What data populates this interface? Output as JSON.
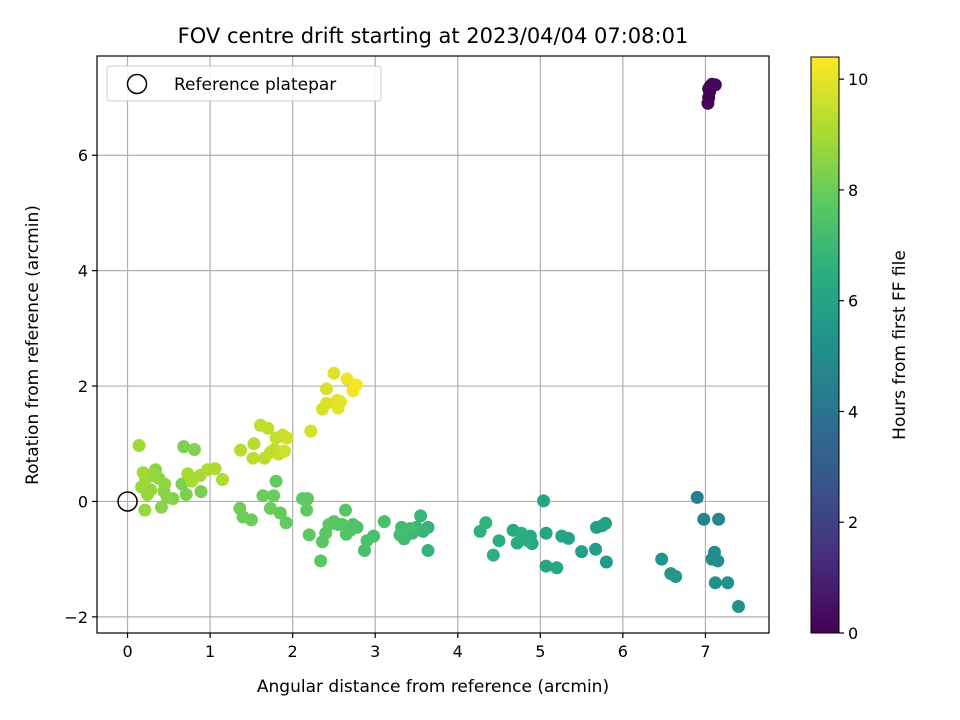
{
  "chart_data": {
    "type": "scatter",
    "title": "FOV centre drift starting at 2023/04/04 07:08:01",
    "xlabel": "Angular distance from reference (arcmin)",
    "ylabel": "Rotation from reference (arcmin)",
    "xlim": [
      -0.37,
      7.77
    ],
    "ylim": [
      -2.28,
      7.72
    ],
    "xticks": [
      0,
      1,
      2,
      3,
      4,
      5,
      6,
      7
    ],
    "yticks": [
      -2,
      0,
      2,
      4,
      6
    ],
    "grid": true,
    "legend": {
      "placement": "top-left",
      "entries": [
        "Reference platepar"
      ]
    },
    "reference_point": {
      "x": 0,
      "y": 0
    },
    "colorbar": {
      "label": "Hours from first FF file",
      "range": [
        0,
        10.4
      ],
      "ticks": [
        0,
        2,
        4,
        6,
        8,
        10
      ],
      "colormap": "viridis"
    },
    "points": [
      {
        "x": 7.03,
        "y": 6.9,
        "c": 0.1
      },
      {
        "x": 7.04,
        "y": 7.0,
        "c": 0.1
      },
      {
        "x": 7.05,
        "y": 7.1,
        "c": 0.1
      },
      {
        "x": 7.06,
        "y": 7.2,
        "c": 0.2
      },
      {
        "x": 7.08,
        "y": 7.23,
        "c": 0.2
      },
      {
        "x": 7.12,
        "y": 7.22,
        "c": 0.2
      },
      {
        "x": 7.04,
        "y": 7.15,
        "c": 0.1
      },
      {
        "x": 6.9,
        "y": 0.07,
        "c": 4.5
      },
      {
        "x": 6.98,
        "y": -0.31,
        "c": 4.7
      },
      {
        "x": 7.16,
        "y": -0.31,
        "c": 4.8
      },
      {
        "x": 7.11,
        "y": -0.88,
        "c": 5.0
      },
      {
        "x": 7.08,
        "y": -1.0,
        "c": 5.0
      },
      {
        "x": 7.15,
        "y": -1.03,
        "c": 5.1
      },
      {
        "x": 7.12,
        "y": -1.41,
        "c": 5.2
      },
      {
        "x": 7.27,
        "y": -1.41,
        "c": 5.2
      },
      {
        "x": 7.4,
        "y": -1.82,
        "c": 5.3
      },
      {
        "x": 6.47,
        "y": -1.0,
        "c": 5.4
      },
      {
        "x": 6.58,
        "y": -1.25,
        "c": 5.5
      },
      {
        "x": 6.64,
        "y": -1.3,
        "c": 5.5
      },
      {
        "x": 5.8,
        "y": -1.05,
        "c": 5.7
      },
      {
        "x": 5.67,
        "y": -0.83,
        "c": 5.8
      },
      {
        "x": 5.68,
        "y": -0.45,
        "c": 5.8
      },
      {
        "x": 5.75,
        "y": -0.42,
        "c": 5.8
      },
      {
        "x": 5.79,
        "y": -0.38,
        "c": 5.9
      },
      {
        "x": 5.5,
        "y": -0.87,
        "c": 5.9
      },
      {
        "x": 5.34,
        "y": -0.64,
        "c": 6.0
      },
      {
        "x": 5.26,
        "y": -0.6,
        "c": 6.0
      },
      {
        "x": 5.07,
        "y": -0.55,
        "c": 6.1
      },
      {
        "x": 5.04,
        "y": 0.01,
        "c": 6.1
      },
      {
        "x": 5.07,
        "y": -1.12,
        "c": 6.1
      },
      {
        "x": 5.2,
        "y": -1.15,
        "c": 6.2
      },
      {
        "x": 4.8,
        "y": -0.6,
        "c": 6.3
      },
      {
        "x": 4.88,
        "y": -0.6,
        "c": 6.3
      },
      {
        "x": 4.9,
        "y": -0.73,
        "c": 6.3
      },
      {
        "x": 4.72,
        "y": -0.72,
        "c": 6.4
      },
      {
        "x": 4.67,
        "y": -0.5,
        "c": 6.4
      },
      {
        "x": 4.85,
        "y": -0.68,
        "c": 6.5
      },
      {
        "x": 4.77,
        "y": -0.55,
        "c": 6.5
      },
      {
        "x": 4.5,
        "y": -0.68,
        "c": 6.6
      },
      {
        "x": 4.43,
        "y": -0.93,
        "c": 6.6
      },
      {
        "x": 4.34,
        "y": -0.37,
        "c": 6.7
      },
      {
        "x": 4.27,
        "y": -0.52,
        "c": 6.7
      },
      {
        "x": 3.64,
        "y": -0.85,
        "c": 6.8
      },
      {
        "x": 3.64,
        "y": -0.45,
        "c": 6.8
      },
      {
        "x": 3.55,
        "y": -0.25,
        "c": 6.9
      },
      {
        "x": 3.58,
        "y": -0.52,
        "c": 6.9
      },
      {
        "x": 3.5,
        "y": -0.45,
        "c": 7.0
      },
      {
        "x": 3.45,
        "y": -0.55,
        "c": 7.0
      },
      {
        "x": 3.4,
        "y": -0.5,
        "c": 7.0
      },
      {
        "x": 3.35,
        "y": -0.65,
        "c": 7.1
      },
      {
        "x": 3.32,
        "y": -0.45,
        "c": 7.1
      },
      {
        "x": 3.38,
        "y": -0.58,
        "c": 7.1
      },
      {
        "x": 3.3,
        "y": -0.58,
        "c": 7.2
      },
      {
        "x": 3.42,
        "y": -0.47,
        "c": 7.2
      },
      {
        "x": 3.11,
        "y": -0.35,
        "c": 7.3
      },
      {
        "x": 2.98,
        "y": -0.6,
        "c": 7.3
      },
      {
        "x": 2.87,
        "y": -0.85,
        "c": 7.3
      },
      {
        "x": 2.9,
        "y": -0.68,
        "c": 7.4
      },
      {
        "x": 2.78,
        "y": -0.45,
        "c": 7.4
      },
      {
        "x": 2.73,
        "y": -0.4,
        "c": 7.5
      },
      {
        "x": 2.7,
        "y": -0.5,
        "c": 7.5
      },
      {
        "x": 2.65,
        "y": -0.57,
        "c": 7.5
      },
      {
        "x": 2.64,
        "y": -0.15,
        "c": 7.6
      },
      {
        "x": 2.6,
        "y": -0.4,
        "c": 7.6
      },
      {
        "x": 2.55,
        "y": -0.4,
        "c": 7.6
      },
      {
        "x": 2.5,
        "y": -0.35,
        "c": 7.6
      },
      {
        "x": 2.44,
        "y": -0.4,
        "c": 7.7
      },
      {
        "x": 2.4,
        "y": -0.55,
        "c": 7.7
      },
      {
        "x": 2.36,
        "y": -0.7,
        "c": 7.7
      },
      {
        "x": 2.34,
        "y": -1.03,
        "c": 7.7
      },
      {
        "x": 2.2,
        "y": -0.58,
        "c": 7.8
      },
      {
        "x": 2.18,
        "y": 0.05,
        "c": 7.8
      },
      {
        "x": 2.12,
        "y": 0.05,
        "c": 7.8
      },
      {
        "x": 2.17,
        "y": -0.15,
        "c": 7.8
      },
      {
        "x": 1.92,
        "y": -0.37,
        "c": 7.9
      },
      {
        "x": 1.85,
        "y": -0.2,
        "c": 7.9
      },
      {
        "x": 1.8,
        "y": 0.35,
        "c": 7.9
      },
      {
        "x": 1.77,
        "y": 0.1,
        "c": 8.0
      },
      {
        "x": 1.73,
        "y": -0.12,
        "c": 8.0
      },
      {
        "x": 1.64,
        "y": 0.1,
        "c": 8.0
      },
      {
        "x": 1.5,
        "y": -0.32,
        "c": 8.0
      },
      {
        "x": 1.4,
        "y": -0.27,
        "c": 8.1
      },
      {
        "x": 1.36,
        "y": -0.12,
        "c": 8.1
      },
      {
        "x": 0.89,
        "y": 0.17,
        "c": 8.2
      },
      {
        "x": 0.71,
        "y": 0.12,
        "c": 8.3
      },
      {
        "x": 0.66,
        "y": 0.3,
        "c": 8.3
      },
      {
        "x": 0.68,
        "y": 0.95,
        "c": 8.3
      },
      {
        "x": 0.81,
        "y": 0.9,
        "c": 8.4
      },
      {
        "x": 0.55,
        "y": 0.05,
        "c": 8.4
      },
      {
        "x": 0.48,
        "y": 0.07,
        "c": 8.5
      },
      {
        "x": 0.41,
        "y": -0.1,
        "c": 8.5
      },
      {
        "x": 0.44,
        "y": 0.18,
        "c": 8.5
      },
      {
        "x": 0.45,
        "y": 0.3,
        "c": 8.6
      },
      {
        "x": 0.38,
        "y": 0.4,
        "c": 8.6
      },
      {
        "x": 0.34,
        "y": 0.55,
        "c": 8.6
      },
      {
        "x": 0.31,
        "y": 0.45,
        "c": 8.7
      },
      {
        "x": 0.28,
        "y": 0.2,
        "c": 8.7
      },
      {
        "x": 0.24,
        "y": 0.12,
        "c": 8.7
      },
      {
        "x": 0.22,
        "y": 0.38,
        "c": 8.8
      },
      {
        "x": 0.21,
        "y": -0.15,
        "c": 8.8
      },
      {
        "x": 0.17,
        "y": 0.25,
        "c": 8.8
      },
      {
        "x": 0.19,
        "y": 0.5,
        "c": 8.9
      },
      {
        "x": 0.14,
        "y": 0.97,
        "c": 8.9
      },
      {
        "x": 0.73,
        "y": 0.48,
        "c": 9.0
      },
      {
        "x": 0.78,
        "y": 0.35,
        "c": 9.0
      },
      {
        "x": 0.88,
        "y": 0.45,
        "c": 9.0
      },
      {
        "x": 0.97,
        "y": 0.55,
        "c": 9.1
      },
      {
        "x": 1.06,
        "y": 0.57,
        "c": 9.1
      },
      {
        "x": 1.15,
        "y": 0.38,
        "c": 9.1
      },
      {
        "x": 1.37,
        "y": 0.89,
        "c": 9.2
      },
      {
        "x": 1.53,
        "y": 1.0,
        "c": 9.2
      },
      {
        "x": 1.52,
        "y": 0.75,
        "c": 9.3
      },
      {
        "x": 1.61,
        "y": 1.32,
        "c": 9.3
      },
      {
        "x": 1.66,
        "y": 0.75,
        "c": 9.3
      },
      {
        "x": 1.7,
        "y": 1.27,
        "c": 9.4
      },
      {
        "x": 1.73,
        "y": 0.85,
        "c": 9.4
      },
      {
        "x": 1.78,
        "y": 0.9,
        "c": 9.4
      },
      {
        "x": 1.8,
        "y": 1.1,
        "c": 9.5
      },
      {
        "x": 1.83,
        "y": 0.82,
        "c": 9.5
      },
      {
        "x": 1.88,
        "y": 1.15,
        "c": 9.5
      },
      {
        "x": 1.93,
        "y": 1.1,
        "c": 9.6
      },
      {
        "x": 1.9,
        "y": 0.87,
        "c": 9.6
      },
      {
        "x": 2.22,
        "y": 1.22,
        "c": 9.7
      },
      {
        "x": 2.36,
        "y": 1.6,
        "c": 9.8
      },
      {
        "x": 2.41,
        "y": 1.7,
        "c": 9.8
      },
      {
        "x": 2.41,
        "y": 1.95,
        "c": 9.8
      },
      {
        "x": 2.5,
        "y": 2.22,
        "c": 9.9
      },
      {
        "x": 2.54,
        "y": 1.75,
        "c": 9.9
      },
      {
        "x": 2.55,
        "y": 1.62,
        "c": 10.0
      },
      {
        "x": 2.58,
        "y": 1.73,
        "c": 10.0
      },
      {
        "x": 2.66,
        "y": 2.12,
        "c": 10.1
      },
      {
        "x": 2.73,
        "y": 1.92,
        "c": 10.2
      },
      {
        "x": 2.77,
        "y": 2.02,
        "c": 10.3
      }
    ]
  }
}
